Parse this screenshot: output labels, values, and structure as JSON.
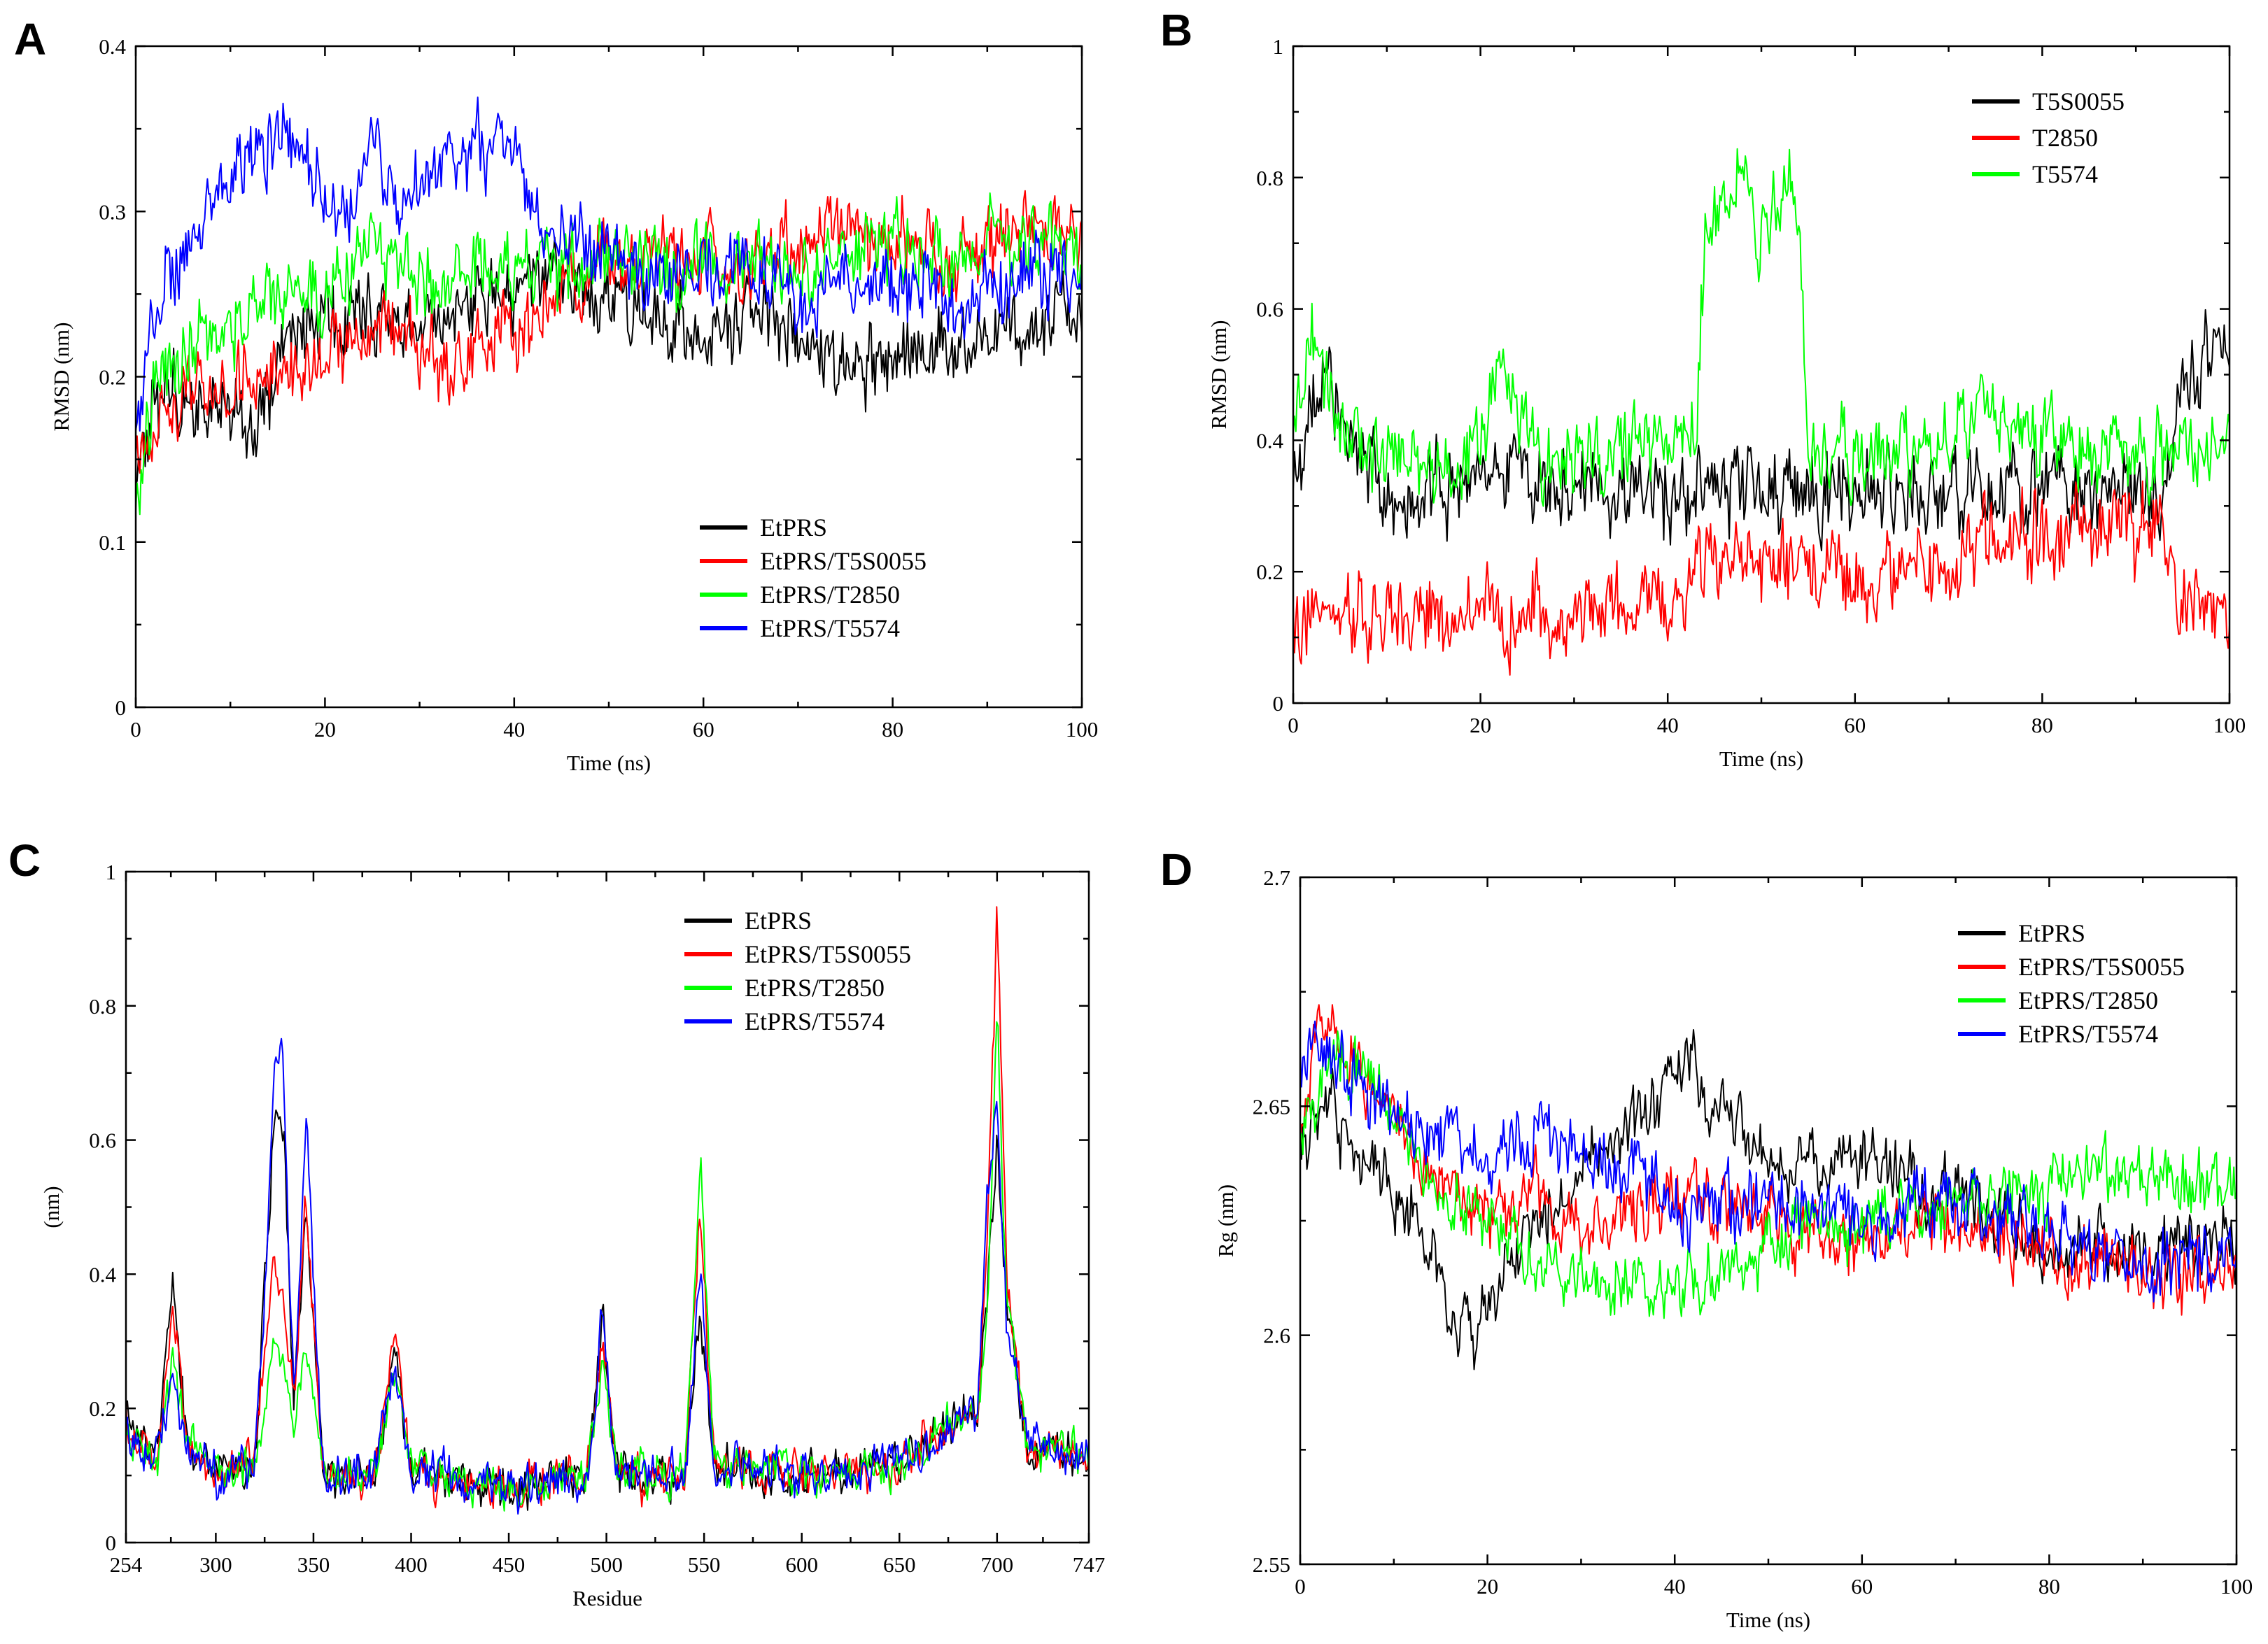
{
  "figure": {
    "panels": [
      "A",
      "B",
      "C",
      "D"
    ]
  },
  "chart_data": [
    {
      "panel": "A",
      "type": "line",
      "title": "",
      "xlabel": "Time (ns)",
      "ylabel": "RMSD (nm)",
      "xlim": [
        0,
        100
      ],
      "ylim": [
        0,
        0.4
      ],
      "xticks": [
        0,
        20,
        40,
        60,
        80,
        100
      ],
      "xtick_labels": [
        "0",
        "20",
        "40",
        "60",
        "80",
        "100"
      ],
      "yticks": [
        0,
        0.1,
        0.2,
        0.3,
        0.4
      ],
      "ytick_labels": [
        "0",
        "0.1",
        "0.2",
        "0.3",
        "0.4"
      ],
      "legend_position": "bottom-right",
      "noise": 0.022,
      "series": [
        {
          "name": "EtPRS",
          "color": "#000000",
          "x": [
            0,
            2,
            5,
            10,
            12,
            15,
            18,
            20,
            25,
            30,
            35,
            40,
            45,
            50,
            55,
            60,
            65,
            70,
            75,
            80,
            85,
            90,
            95,
            100
          ],
          "values": [
            0.13,
            0.18,
            0.19,
            0.18,
            0.16,
            0.2,
            0.23,
            0.24,
            0.24,
            0.23,
            0.24,
            0.25,
            0.26,
            0.25,
            0.24,
            0.22,
            0.24,
            0.23,
            0.2,
            0.21,
            0.22,
            0.22,
            0.23,
            0.25
          ]
        },
        {
          "name": "EtPRS/T5S0055",
          "color": "#ff0000",
          "x": [
            0,
            2,
            5,
            10,
            15,
            20,
            25,
            30,
            35,
            40,
            45,
            50,
            55,
            60,
            65,
            70,
            75,
            80,
            85,
            90,
            95,
            100
          ],
          "values": [
            0.14,
            0.17,
            0.19,
            0.2,
            0.2,
            0.21,
            0.23,
            0.22,
            0.21,
            0.22,
            0.25,
            0.27,
            0.28,
            0.27,
            0.26,
            0.28,
            0.3,
            0.28,
            0.27,
            0.28,
            0.29,
            0.28
          ]
        },
        {
          "name": "EtPRS/T2850",
          "color": "#00ff00",
          "x": [
            0,
            2,
            5,
            10,
            15,
            20,
            25,
            30,
            35,
            40,
            45,
            50,
            55,
            60,
            65,
            70,
            75,
            80,
            85,
            90,
            95,
            100
          ],
          "values": [
            0.12,
            0.2,
            0.22,
            0.23,
            0.25,
            0.25,
            0.27,
            0.26,
            0.26,
            0.27,
            0.26,
            0.27,
            0.27,
            0.26,
            0.27,
            0.27,
            0.27,
            0.28,
            0.27,
            0.28,
            0.28,
            0.28
          ]
        },
        {
          "name": "EtPRS/T5574",
          "color": "#0000ff",
          "x": [
            0,
            2,
            5,
            8,
            12,
            15,
            18,
            20,
            22,
            25,
            28,
            32,
            35,
            40,
            42,
            45,
            50,
            55,
            60,
            65,
            70,
            75,
            80,
            85,
            90,
            95,
            100
          ],
          "values": [
            0.16,
            0.24,
            0.27,
            0.31,
            0.33,
            0.35,
            0.33,
            0.31,
            0.3,
            0.34,
            0.3,
            0.33,
            0.34,
            0.34,
            0.3,
            0.28,
            0.27,
            0.26,
            0.26,
            0.27,
            0.25,
            0.25,
            0.26,
            0.25,
            0.25,
            0.26,
            0.25
          ]
        }
      ]
    },
    {
      "panel": "B",
      "type": "line",
      "title": "",
      "xlabel": "Time (ns)",
      "ylabel": "RMSD (nm)",
      "xlim": [
        0,
        100
      ],
      "ylim": [
        0,
        1
      ],
      "xticks": [
        0,
        20,
        40,
        60,
        80,
        100
      ],
      "xtick_labels": [
        "0",
        "20",
        "40",
        "60",
        "80",
        "100"
      ],
      "yticks": [
        0,
        0.2,
        0.4,
        0.6,
        0.8,
        1
      ],
      "ytick_labels": [
        "0",
        "0.2",
        "0.4",
        "0.6",
        "0.8",
        "1"
      ],
      "legend_position": "top-right",
      "noise": 0.06,
      "series": [
        {
          "name": "T5S0055",
          "color": "#000000",
          "x": [
            0,
            2,
            4,
            6,
            8,
            10,
            15,
            20,
            25,
            30,
            40,
            50,
            60,
            70,
            80,
            90,
            93,
            95,
            97,
            100
          ],
          "values": [
            0.3,
            0.5,
            0.48,
            0.4,
            0.35,
            0.3,
            0.33,
            0.34,
            0.36,
            0.33,
            0.32,
            0.32,
            0.31,
            0.32,
            0.33,
            0.32,
            0.33,
            0.5,
            0.52,
            0.52
          ]
        },
        {
          "name": "T2850",
          "color": "#ff0000",
          "x": [
            0,
            5,
            10,
            20,
            30,
            40,
            45,
            48,
            52,
            55,
            60,
            65,
            70,
            80,
            90,
            92,
            95,
            100
          ],
          "values": [
            0.1,
            0.15,
            0.13,
            0.14,
            0.13,
            0.15,
            0.24,
            0.22,
            0.2,
            0.19,
            0.18,
            0.2,
            0.22,
            0.25,
            0.26,
            0.28,
            0.15,
            0.15
          ]
        },
        {
          "name": "T5574",
          "color": "#00ff00",
          "x": [
            0,
            2,
            5,
            10,
            20,
            22,
            24,
            27,
            30,
            40,
            43,
            44,
            46,
            48,
            50,
            53,
            54,
            55,
            57,
            60,
            70,
            75,
            80,
            90,
            100
          ],
          "values": [
            0.4,
            0.55,
            0.4,
            0.38,
            0.38,
            0.5,
            0.45,
            0.35,
            0.38,
            0.4,
            0.42,
            0.7,
            0.78,
            0.82,
            0.7,
            0.8,
            0.75,
            0.4,
            0.38,
            0.37,
            0.4,
            0.45,
            0.4,
            0.39,
            0.38
          ]
        }
      ]
    },
    {
      "panel": "C",
      "type": "line",
      "title": "",
      "xlabel": "Residue",
      "ylabel": "(nm)",
      "xlim": [
        254,
        747
      ],
      "ylim": [
        0,
        1
      ],
      "xticks": [
        254,
        300,
        350,
        400,
        450,
        500,
        550,
        600,
        650,
        700,
        747
      ],
      "xtick_labels": [
        "254",
        "300",
        "350",
        "400",
        "450",
        "500",
        "550",
        "600",
        "650",
        "700",
        "747"
      ],
      "yticks": [
        0,
        0.2,
        0.4,
        0.6,
        0.8,
        1
      ],
      "ytick_labels": [
        "0",
        "0.2",
        "0.4",
        "0.6",
        "0.8",
        "1"
      ],
      "legend_position": "top-right",
      "noise": 0.03,
      "series": [
        {
          "name": "EtPRS",
          "color": "#000000",
          "x": [
            254,
            270,
            278,
            285,
            300,
            320,
            330,
            335,
            340,
            346,
            355,
            380,
            392,
            400,
            450,
            490,
            498,
            505,
            540,
            548,
            555,
            600,
            650,
            690,
            695,
            700,
            705,
            715,
            747
          ],
          "values": [
            0.18,
            0.12,
            0.4,
            0.15,
            0.1,
            0.12,
            0.65,
            0.6,
            0.2,
            0.5,
            0.1,
            0.1,
            0.28,
            0.1,
            0.08,
            0.1,
            0.33,
            0.1,
            0.1,
            0.35,
            0.12,
            0.1,
            0.12,
            0.2,
            0.35,
            0.6,
            0.35,
            0.15,
            0.12
          ]
        },
        {
          "name": "EtPRS/T5S0055",
          "color": "#ff0000",
          "x": [
            254,
            270,
            278,
            285,
            300,
            320,
            330,
            335,
            340,
            346,
            355,
            380,
            392,
            400,
            450,
            490,
            498,
            505,
            540,
            548,
            555,
            600,
            650,
            690,
            695,
            700,
            705,
            715,
            747
          ],
          "values": [
            0.18,
            0.12,
            0.35,
            0.15,
            0.1,
            0.12,
            0.43,
            0.35,
            0.2,
            0.52,
            0.1,
            0.1,
            0.32,
            0.1,
            0.08,
            0.1,
            0.3,
            0.1,
            0.1,
            0.5,
            0.12,
            0.1,
            0.12,
            0.2,
            0.45,
            0.94,
            0.4,
            0.15,
            0.12
          ]
        },
        {
          "name": "EtPRS/T2850",
          "color": "#00ff00",
          "x": [
            254,
            270,
            278,
            285,
            300,
            320,
            330,
            335,
            340,
            346,
            355,
            380,
            392,
            400,
            450,
            490,
            498,
            505,
            540,
            548,
            555,
            600,
            650,
            690,
            695,
            700,
            705,
            715,
            747
          ],
          "values": [
            0.15,
            0.12,
            0.27,
            0.15,
            0.1,
            0.12,
            0.3,
            0.25,
            0.18,
            0.3,
            0.1,
            0.1,
            0.25,
            0.1,
            0.08,
            0.1,
            0.28,
            0.1,
            0.1,
            0.59,
            0.12,
            0.1,
            0.12,
            0.2,
            0.35,
            0.77,
            0.35,
            0.15,
            0.12
          ]
        },
        {
          "name": "EtPRS/T5574",
          "color": "#0000ff",
          "x": [
            254,
            270,
            278,
            285,
            300,
            320,
            326,
            330,
            334,
            340,
            346,
            355,
            380,
            392,
            400,
            450,
            490,
            498,
            505,
            540,
            548,
            555,
            600,
            650,
            690,
            695,
            700,
            705,
            715,
            747
          ],
          "values": [
            0.15,
            0.12,
            0.25,
            0.15,
            0.1,
            0.12,
            0.4,
            0.72,
            0.75,
            0.2,
            0.64,
            0.1,
            0.1,
            0.25,
            0.1,
            0.08,
            0.1,
            0.34,
            0.1,
            0.1,
            0.4,
            0.12,
            0.1,
            0.12,
            0.2,
            0.5,
            0.67,
            0.3,
            0.15,
            0.12
          ]
        }
      ]
    },
    {
      "panel": "D",
      "type": "line",
      "title": "",
      "xlabel": "Time (ns)",
      "ylabel": "Rg (nm)",
      "xlim": [
        0,
        100
      ],
      "ylim": [
        2.55,
        2.7
      ],
      "xticks": [
        0,
        20,
        40,
        60,
        80,
        100
      ],
      "xtick_labels": [
        "0",
        "20",
        "40",
        "60",
        "80",
        "100"
      ],
      "yticks": [
        2.55,
        2.6,
        2.65,
        2.7
      ],
      "ytick_labels": [
        "2.55",
        "2.6",
        "2.65",
        "2.7"
      ],
      "legend_position": "top-right",
      "noise": 0.007,
      "series": [
        {
          "name": "EtPRS",
          "color": "#000000",
          "x": [
            0,
            3,
            8,
            12,
            16,
            18,
            20,
            25,
            30,
            35,
            40,
            42,
            45,
            50,
            55,
            60,
            65,
            70,
            75,
            80,
            85,
            90,
            95,
            100
          ],
          "values": [
            2.64,
            2.65,
            2.635,
            2.625,
            2.61,
            2.6,
            2.61,
            2.625,
            2.635,
            2.645,
            2.655,
            2.66,
            2.65,
            2.64,
            2.635,
            2.64,
            2.635,
            2.63,
            2.625,
            2.62,
            2.62,
            2.618,
            2.62,
            2.62
          ]
        },
        {
          "name": "EtPRS/T5S0055",
          "color": "#ff0000",
          "x": [
            0,
            2,
            3,
            8,
            12,
            20,
            25,
            30,
            40,
            50,
            60,
            70,
            80,
            90,
            100
          ],
          "values": [
            2.64,
            2.67,
            2.665,
            2.655,
            2.64,
            2.625,
            2.63,
            2.625,
            2.63,
            2.625,
            2.62,
            2.625,
            2.618,
            2.615,
            2.612
          ]
        },
        {
          "name": "EtPRS/T2850",
          "color": "#00ff00",
          "x": [
            0,
            3,
            8,
            12,
            20,
            25,
            30,
            35,
            40,
            45,
            50,
            60,
            70,
            80,
            90,
            100
          ],
          "values": [
            2.64,
            2.66,
            2.655,
            2.64,
            2.625,
            2.615,
            2.613,
            2.61,
            2.61,
            2.613,
            2.62,
            2.625,
            2.63,
            2.632,
            2.635,
            2.632
          ]
        },
        {
          "name": "EtPRS/T5574",
          "color": "#0000ff",
          "x": [
            0,
            3,
            8,
            15,
            20,
            25,
            30,
            35,
            40,
            50,
            60,
            70,
            80,
            90,
            100
          ],
          "values": [
            2.655,
            2.66,
            2.65,
            2.64,
            2.64,
            2.645,
            2.642,
            2.635,
            2.63,
            2.628,
            2.625,
            2.63,
            2.622,
            2.615,
            2.618
          ]
        }
      ]
    }
  ]
}
